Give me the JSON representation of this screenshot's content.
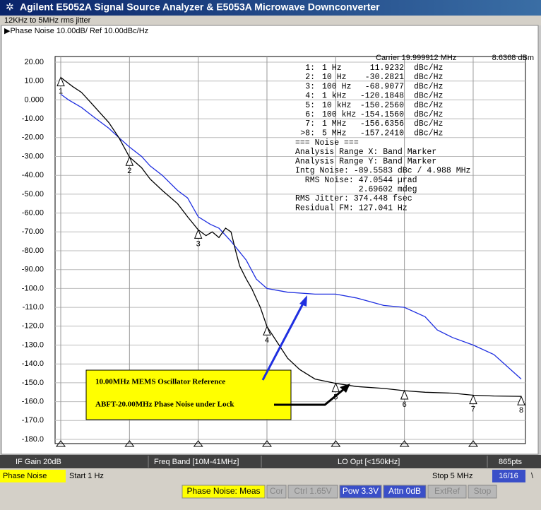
{
  "window": {
    "title": "Agilent E5052A Signal Source Analyzer & E5053A Microwave Downconverter",
    "subtitle": "12KHz to 5MHz rms jitter"
  },
  "chart_data": {
    "type": "line",
    "title": "Phase Noise  10.00dB/ Ref 10.00dBc/Hz",
    "log_x": true,
    "grid": true,
    "xlim": [
      1,
      5000000
    ],
    "xticks": [
      1,
      10,
      100,
      1000,
      10000,
      100000,
      1000000
    ],
    "ylim": [
      -180,
      20
    ],
    "yticks": [
      {
        "value": 20,
        "label": "20.00"
      },
      {
        "value": 10,
        "label": "10.00"
      },
      {
        "value": 0,
        "label": "0.000"
      },
      {
        "value": -10,
        "label": "-10.00"
      },
      {
        "value": -20,
        "label": "-20.00"
      },
      {
        "value": -30,
        "label": "-30.00"
      },
      {
        "value": -40,
        "label": "-40.00"
      },
      {
        "value": -50,
        "label": "-50.00"
      },
      {
        "value": -60,
        "label": "-60.00"
      },
      {
        "value": -70,
        "label": "-70.00"
      },
      {
        "value": -80,
        "label": "-80.00"
      },
      {
        "value": -90,
        "label": "-90.00"
      },
      {
        "value": -100,
        "label": "-100.0"
      },
      {
        "value": -110,
        "label": "-110.0"
      },
      {
        "value": -120,
        "label": "-120.0"
      },
      {
        "value": -130,
        "label": "-130.0"
      },
      {
        "value": -140,
        "label": "-140.0"
      },
      {
        "value": -150,
        "label": "-150.0"
      },
      {
        "value": -160,
        "label": "-160.0"
      },
      {
        "value": -170,
        "label": "-170.0"
      },
      {
        "value": -180,
        "label": "-180.0"
      }
    ],
    "series": [
      {
        "color": "#1f2fe0",
        "x": [
          1,
          1.3,
          2,
          3,
          5,
          7,
          10,
          15,
          20,
          30,
          50,
          70,
          100,
          150,
          200,
          300,
          500,
          700,
          1000,
          2000,
          5000,
          10000,
          20000,
          50000,
          100000,
          200000,
          300000,
          500000,
          1000000,
          2000000,
          5000000
        ],
        "values": [
          3,
          0,
          -4,
          -9,
          -15,
          -20,
          -25,
          -30,
          -35,
          -40,
          -48,
          -52,
          -62,
          -66,
          -68,
          -75,
          -85,
          -95,
          -100,
          -102,
          -103,
          -103,
          -105,
          -109,
          -110,
          -115,
          -122,
          -126,
          -130,
          -135,
          -148
        ]
      },
      {
        "color": "#000000",
        "x": [
          1,
          1.5,
          2,
          3,
          5,
          7,
          10,
          15,
          20,
          30,
          50,
          70,
          100,
          130,
          160,
          200,
          250,
          300,
          350,
          400,
          500,
          600,
          800,
          1000,
          1500,
          2000,
          3000,
          5000,
          10000,
          20000,
          50000,
          100000,
          200000,
          500000,
          1000000,
          2000000,
          5000000
        ],
        "values": [
          11.9,
          7,
          4,
          -3,
          -12,
          -20,
          -30.3,
          -36,
          -42,
          -48,
          -55,
          -62,
          -68.9,
          -72,
          -70,
          -73,
          -68,
          -70,
          -80,
          -88,
          -95,
          -100,
          -110,
          -120.2,
          -130,
          -137,
          -143,
          -148,
          -150.3,
          -152,
          -153,
          -154.2,
          -155,
          -155.5,
          -156.6,
          -157,
          -157.2
        ]
      }
    ],
    "markers": {
      "x": [
        1,
        10,
        100,
        1000,
        10000,
        100000,
        1000000,
        5000000
      ],
      "values": [
        11.9232,
        -30.2821,
        -68.9077,
        -120.1848,
        -150.256,
        -154.156,
        -156.6356,
        -157.241
      ],
      "labels": [
        "1",
        "2",
        "3",
        "4",
        "5",
        "6",
        "7",
        "8"
      ]
    },
    "annotations": [
      "10.00MHz MEMS Oscillator Reference",
      "ABFT-20.00MHz Phase Noise under Lock"
    ]
  },
  "carrier": [
    "Carrier 19.999912 MHz",
    "8.6368 dBm"
  ],
  "marker_table": [
    [
      "1:",
      "1 Hz",
      "11.9232",
      "dBc/Hz"
    ],
    [
      "2:",
      "10 Hz",
      "-30.2821",
      "dBc/Hz"
    ],
    [
      "3:",
      "100 Hz",
      "-68.9077",
      "dBc/Hz"
    ],
    [
      "4:",
      "1 kHz",
      "-120.1848",
      "dBc/Hz"
    ],
    [
      "5:",
      "10 kHz",
      "-150.2560",
      "dBc/Hz"
    ],
    [
      "6:",
      "100 kHz",
      "-154.1560",
      "dBc/Hz"
    ],
    [
      "7:",
      "1 MHz",
      "-156.6356",
      "dBc/Hz"
    ],
    [
      ">8:",
      "5 MHz",
      "-157.2410",
      "dBc/Hz"
    ]
  ],
  "noise": [
    "=== Noise ===",
    "Analysis Range X: Band Marker",
    "Analysis Range Y: Band Marker",
    "Intg Noise: -89.5583 dBc / 4.988 MHz",
    "  RMS Noise: 47.0544 µrad",
    "             2.69602 mdeg",
    "RMS Jitter: 374.448 fsec",
    "Residual FM: 127.041 Hz"
  ],
  "status": {
    "if_gain": "IF Gain 20dB",
    "freq_band": "Freq Band [10M-41MHz]",
    "lo_opt": "LO Opt [<150kHz]",
    "points": "865pts"
  },
  "footer": {
    "mode": "Phase Noise",
    "start": "Start 1 Hz",
    "stop": "Stop 5 MHz",
    "page": "16/16",
    "end": "\\"
  },
  "indicators": [
    "Phase Noise: Meas",
    "Cor",
    "Ctrl 1.65V",
    "Pow 3.3V",
    "Attn 0dB",
    "ExtRef",
    "Stop"
  ]
}
